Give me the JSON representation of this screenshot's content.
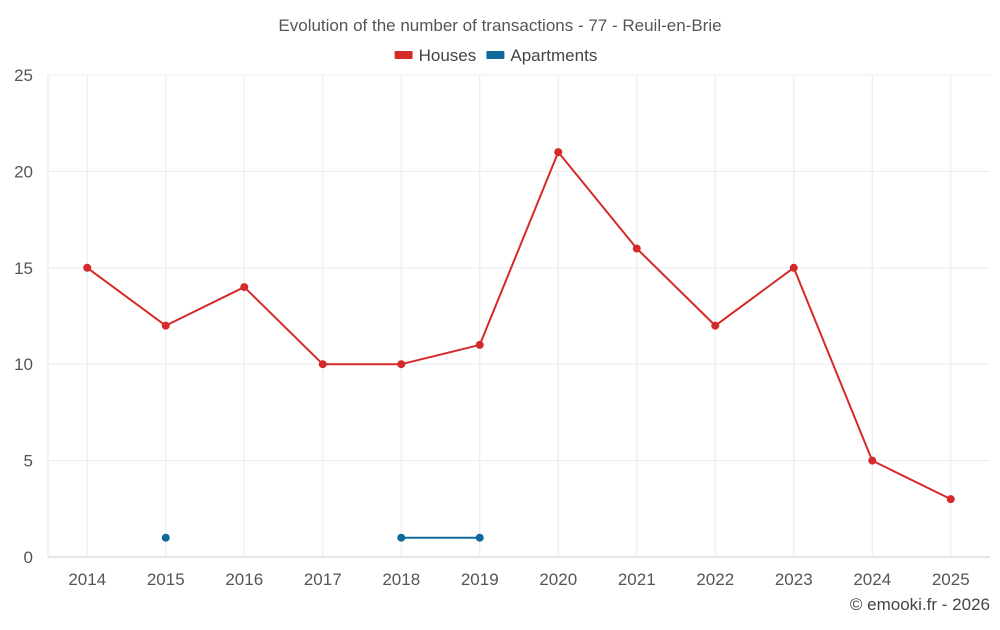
{
  "chart_data": {
    "type": "line",
    "title": "Evolution of the number of transactions - 77 - Reuil-en-Brie",
    "categories": [
      "2014",
      "2015",
      "2016",
      "2017",
      "2018",
      "2019",
      "2020",
      "2021",
      "2022",
      "2023",
      "2024",
      "2025"
    ],
    "ylim": [
      0,
      25
    ],
    "yticks": [
      0,
      5,
      10,
      15,
      20,
      25
    ],
    "grid": true,
    "legend_position": "top-center",
    "series": [
      {
        "name": "Houses",
        "color": "#d42a2a",
        "values": [
          15,
          12,
          14,
          10,
          10,
          11,
          21,
          16,
          12,
          15,
          5,
          3
        ]
      },
      {
        "name": "Apartments",
        "color": "#0f6a9c",
        "values": [
          null,
          1,
          null,
          null,
          1,
          1,
          null,
          null,
          null,
          null,
          null,
          null
        ]
      }
    ],
    "credit": "© emooki.fr - 2026"
  }
}
